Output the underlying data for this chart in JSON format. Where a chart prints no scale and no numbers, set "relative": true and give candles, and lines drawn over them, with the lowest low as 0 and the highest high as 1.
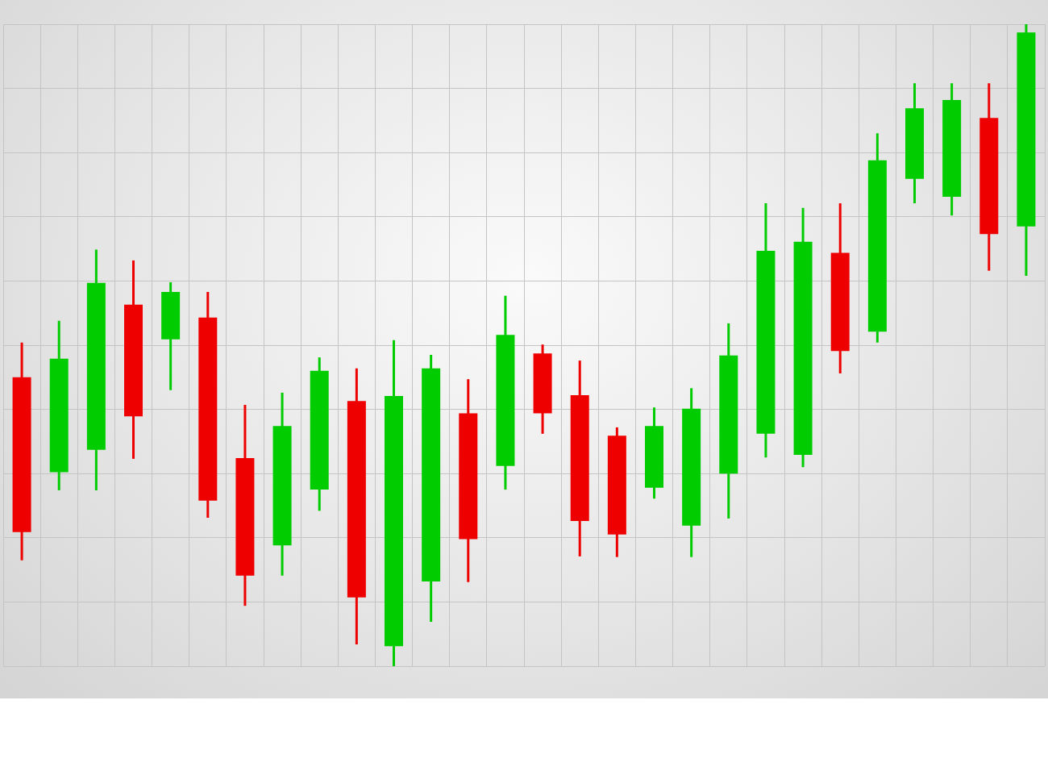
{
  "chart_data": {
    "type": "candlestick",
    "relative": true,
    "grid": true,
    "tick_labels": false,
    "categories": [
      null,
      null,
      null,
      null,
      null,
      null,
      null,
      null,
      null,
      null,
      null,
      null,
      null,
      null,
      null,
      null,
      null,
      null,
      null,
      null,
      null,
      null,
      null,
      null,
      null,
      null,
      null,
      null
    ],
    "ohlc": [
      [
        0.45,
        0.504,
        0.165,
        0.209
      ],
      [
        0.302,
        0.538,
        0.274,
        0.479
      ],
      [
        0.337,
        0.649,
        0.274,
        0.597
      ],
      [
        0.563,
        0.632,
        0.323,
        0.389
      ],
      [
        0.509,
        0.598,
        0.43,
        0.583
      ],
      [
        0.543,
        0.583,
        0.231,
        0.258
      ],
      [
        0.324,
        0.407,
        0.094,
        0.141
      ],
      [
        0.188,
        0.426,
        0.141,
        0.374
      ],
      [
        0.275,
        0.481,
        0.242,
        0.46
      ],
      [
        0.413,
        0.464,
        0.034,
        0.107
      ],
      [
        0.031,
        0.508,
        0,
        0.421
      ],
      [
        0.132,
        0.485,
        0.069,
        0.464
      ],
      [
        0.394,
        0.447,
        0.131,
        0.198
      ],
      [
        0.312,
        0.577,
        0.275,
        0.516
      ],
      [
        0.487,
        0.501,
        0.362,
        0.394
      ],
      [
        0.422,
        0.476,
        0.171,
        0.226
      ],
      [
        0.359,
        0.372,
        0.17,
        0.205
      ],
      [
        0.278,
        0.403,
        0.261,
        0.374
      ],
      [
        0.219,
        0.433,
        0.17,
        0.401
      ],
      [
        0.3,
        0.534,
        0.23,
        0.484
      ],
      [
        0.362,
        0.721,
        0.325,
        0.647
      ],
      [
        0.329,
        0.714,
        0.31,
        0.661
      ],
      [
        0.644,
        0.721,
        0.456,
        0.491
      ],
      [
        0.521,
        0.83,
        0.504,
        0.788
      ],
      [
        0.759,
        0.908,
        0.721,
        0.869
      ],
      [
        0.731,
        0.908,
        0.702,
        0.882
      ],
      [
        0.854,
        0.908,
        0.616,
        0.673
      ],
      [
        0.685,
        1,
        0.608,
        0.987
      ]
    ],
    "colors": [
      "#ee0000",
      "#00cc00",
      "#00cc00",
      "#ee0000",
      "#00cc00",
      "#ee0000",
      "#ee0000",
      "#00cc00",
      "#00cc00",
      "#ee0000",
      "#00cc00",
      "#00cc00",
      "#ee0000",
      "#00cc00",
      "#ee0000",
      "#ee0000",
      "#ee0000",
      "#00cc00",
      "#00cc00",
      "#00cc00",
      "#00cc00",
      "#00cc00",
      "#ee0000",
      "#00cc00",
      "#00cc00",
      "#00cc00",
      "#ee0000",
      "#00cc00"
    ]
  }
}
